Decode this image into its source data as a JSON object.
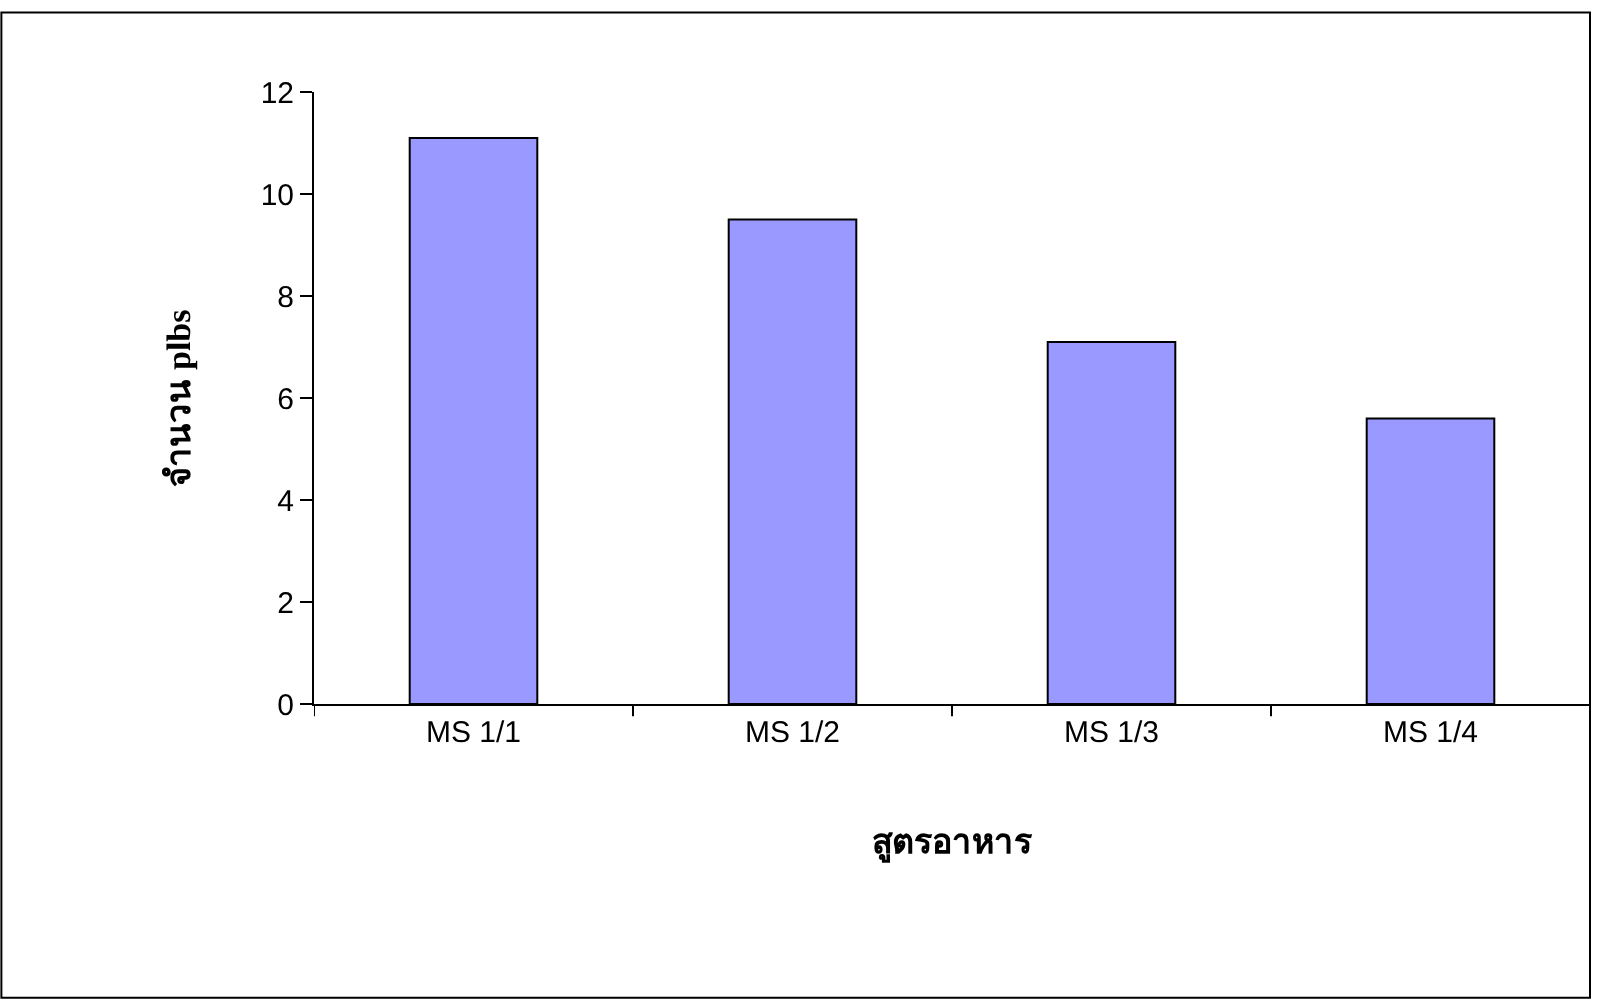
{
  "chart_data": {
    "type": "bar",
    "xlabel": "สูตรอาหาร",
    "ylabel": "จำนวน plbs",
    "categories": [
      "MS 1/1",
      "MS 1/2",
      "MS 1/3",
      "MS 1/4"
    ],
    "values": [
      11.1,
      9.5,
      7.1,
      5.6
    ],
    "color": "#9999ff",
    "ylim": [
      0,
      12
    ],
    "yticks": [
      0,
      2,
      4,
      6,
      8,
      10,
      12
    ],
    "grid": false,
    "legend": false
  }
}
